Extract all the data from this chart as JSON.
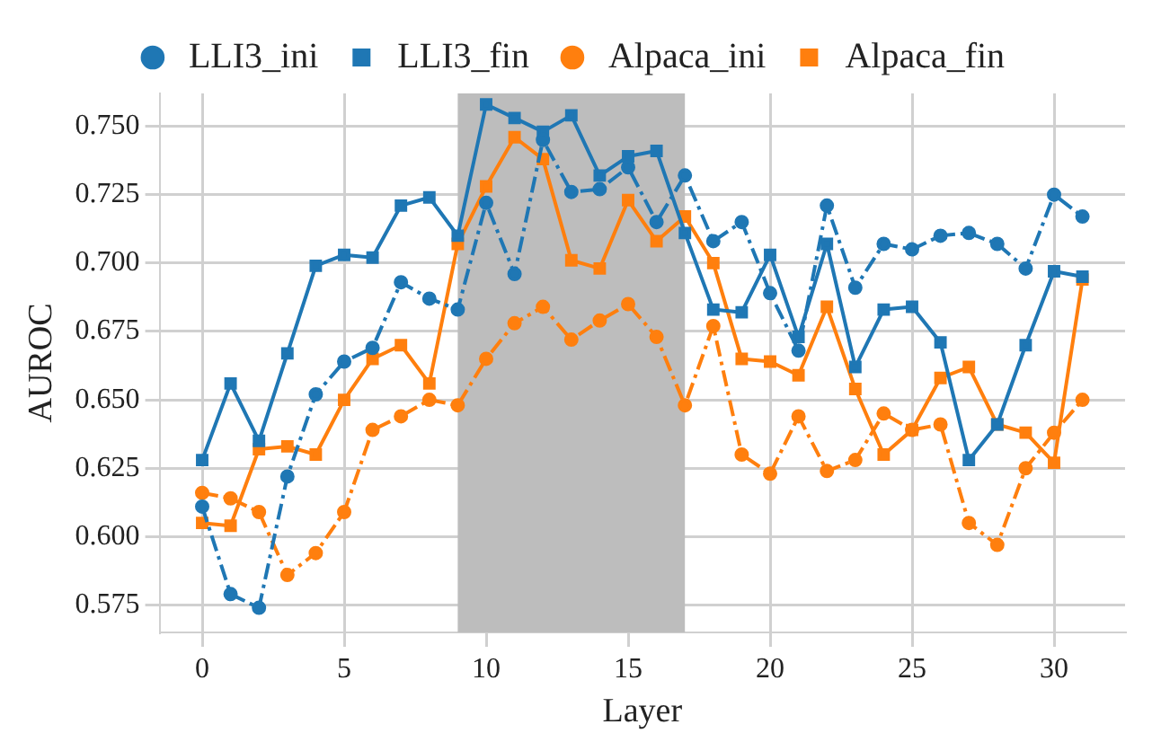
{
  "chart_data": {
    "type": "line",
    "xlabel": "Layer",
    "ylabel": "AUROC",
    "x": [
      0,
      1,
      2,
      3,
      4,
      5,
      6,
      7,
      8,
      9,
      10,
      11,
      12,
      13,
      14,
      15,
      16,
      17,
      18,
      19,
      20,
      21,
      22,
      23,
      24,
      25,
      26,
      27,
      28,
      29,
      30,
      31
    ],
    "series": [
      {
        "name": "LLI3_ini",
        "color": "#1f77b4",
        "marker": "circle",
        "line_style": "dashed",
        "values": [
          0.611,
          0.579,
          0.574,
          0.622,
          0.652,
          0.664,
          0.669,
          0.693,
          0.687,
          0.683,
          0.722,
          0.696,
          0.745,
          0.726,
          0.727,
          0.735,
          0.715,
          0.732,
          0.708,
          0.715,
          0.689,
          0.668,
          0.721,
          0.691,
          0.707,
          0.705,
          0.71,
          0.711,
          0.707,
          0.698,
          0.725,
          0.717
        ]
      },
      {
        "name": "LLI3_fin",
        "color": "#1f77b4",
        "marker": "square",
        "line_style": "solid",
        "values": [
          0.628,
          0.656,
          0.635,
          0.667,
          0.699,
          0.703,
          0.702,
          0.721,
          0.724,
          0.71,
          0.758,
          0.753,
          0.748,
          0.754,
          0.732,
          0.739,
          0.741,
          0.711,
          0.683,
          0.682,
          0.703,
          0.673,
          0.707,
          0.662,
          0.683,
          0.684,
          0.671,
          0.628,
          0.641,
          0.67,
          0.697,
          0.695
        ]
      },
      {
        "name": "Alpaca_ini",
        "color": "#ff7f0e",
        "marker": "circle",
        "line_style": "dashed",
        "values": [
          0.616,
          0.614,
          0.609,
          0.586,
          0.594,
          0.609,
          0.639,
          0.644,
          0.65,
          0.648,
          0.665,
          0.678,
          0.684,
          0.672,
          0.679,
          0.685,
          0.673,
          0.648,
          0.677,
          0.63,
          0.623,
          0.644,
          0.624,
          0.628,
          0.645,
          0.639,
          0.641,
          0.605,
          0.597,
          0.625,
          0.638,
          0.65
        ]
      },
      {
        "name": "Alpaca_fin",
        "color": "#ff7f0e",
        "marker": "square",
        "line_style": "solid",
        "values": [
          0.605,
          0.604,
          0.632,
          0.633,
          0.63,
          0.65,
          0.665,
          0.67,
          0.656,
          0.707,
          0.728,
          0.746,
          0.738,
          0.701,
          0.698,
          0.723,
          0.708,
          0.717,
          0.7,
          0.665,
          0.664,
          0.659,
          0.684,
          0.654,
          0.63,
          0.639,
          0.658,
          0.662,
          0.641,
          0.638,
          0.627,
          0.694
        ]
      }
    ],
    "xlim": [
      -1.5,
      32.5
    ],
    "xticks": [
      0,
      5,
      10,
      15,
      20,
      25,
      30
    ],
    "ylim": [
      0.565,
      0.762
    ],
    "yticks": [
      {
        "value": 0.575,
        "label": "0.575"
      },
      {
        "value": 0.6,
        "label": "0.600"
      },
      {
        "value": 0.625,
        "label": "0.625"
      },
      {
        "value": 0.65,
        "label": "0.650"
      },
      {
        "value": 0.675,
        "label": "0.675"
      },
      {
        "value": 0.7,
        "label": "0.700"
      },
      {
        "value": 0.725,
        "label": "0.725"
      },
      {
        "value": 0.75,
        "label": "0.750"
      }
    ],
    "bands": [
      {
        "axis": "x",
        "from": 9,
        "to": 17,
        "color": "#bdbdbd"
      }
    ],
    "grid": true,
    "legend": "top"
  }
}
